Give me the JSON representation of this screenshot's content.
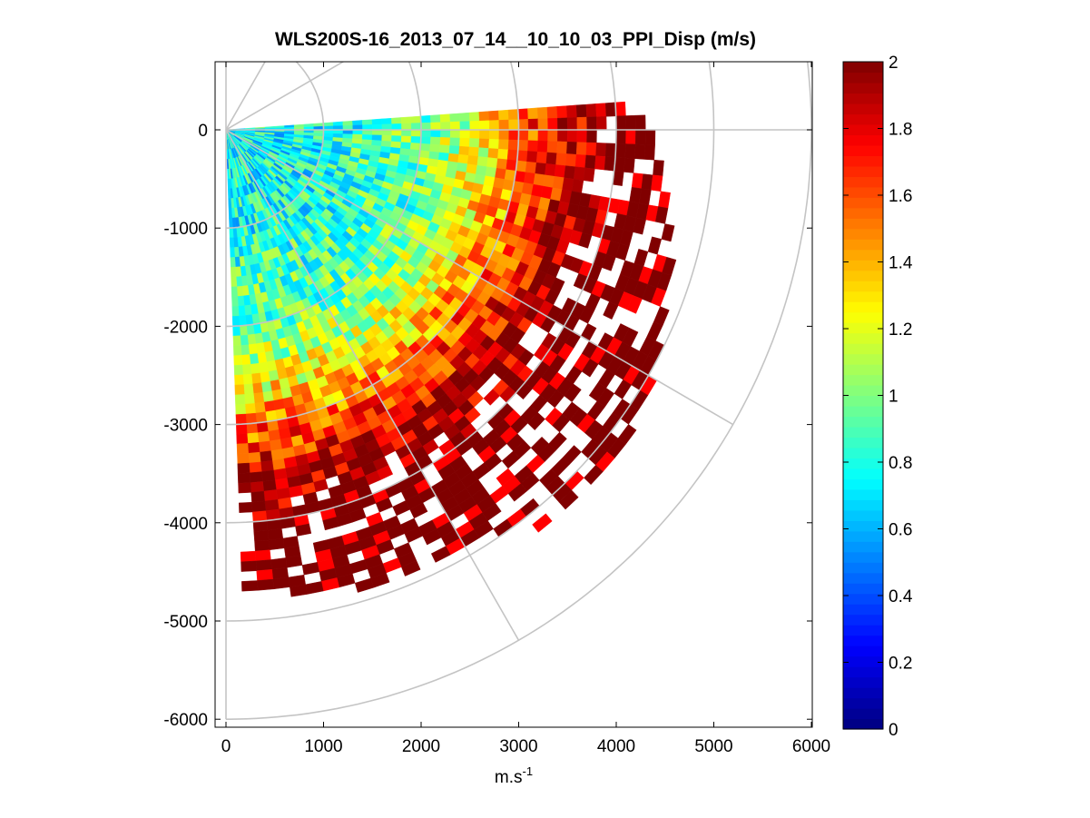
{
  "chart_data": {
    "type": "heatmap",
    "subtype": "polar-ppi-sector",
    "title": "WLS200S-16_2013_07_14__10_10_03_PPI_Disp (m/s)",
    "xlabel": "m.s",
    "xlabel_sup": "-1",
    "ylabel": "",
    "xlim": [
      -50,
      6000
    ],
    "ylim": [
      -6100,
      600
    ],
    "x_ticks": [
      0,
      1000,
      2000,
      3000,
      4000,
      5000,
      6000
    ],
    "x_tick_labels": [
      "0",
      "1000",
      "2000",
      "3000",
      "4000",
      "5000",
      "6000"
    ],
    "y_ticks": [
      0,
      -1000,
      -2000,
      -3000,
      -4000,
      -5000,
      -6000
    ],
    "y_tick_labels": [
      "0",
      "-1000",
      "-2000",
      "-3000",
      "-4000",
      "-5000",
      "-6000"
    ],
    "colorbar": {
      "colormap": "jet",
      "range": [
        0,
        2
      ],
      "ticks": [
        0,
        0.2,
        0.4,
        0.6,
        0.8,
        1,
        1.2,
        1.4,
        1.6,
        1.8,
        2
      ],
      "tick_labels": [
        "0",
        "0.2",
        "0.4",
        "0.6",
        "0.8",
        "1",
        "1.2",
        "1.4",
        "1.6",
        "1.8",
        "2"
      ]
    },
    "sector": {
      "azimuth_start_deg": 4,
      "azimuth_end_deg": -87,
      "azimuth_step_deg": 2,
      "range_max_m": 4900,
      "range_step_m": 100
    },
    "polar_grid": {
      "rings_m": [
        1000,
        2000,
        3000,
        4000,
        5000,
        6000
      ],
      "spokes_deg": [
        90,
        60,
        30,
        0,
        -30,
        -60,
        -90
      ]
    },
    "value_profile": {
      "range_m": [
        0,
        1000,
        2000,
        2500,
        3000,
        3500,
        4000,
        4500,
        5000
      ],
      "median_disp_m_s": [
        0.75,
        0.8,
        0.95,
        1.2,
        1.55,
        1.85,
        2.0,
        2.0,
        2.0
      ],
      "missing_fraction_beyond_m": 3600
    },
    "grid": false,
    "legend": "none"
  }
}
